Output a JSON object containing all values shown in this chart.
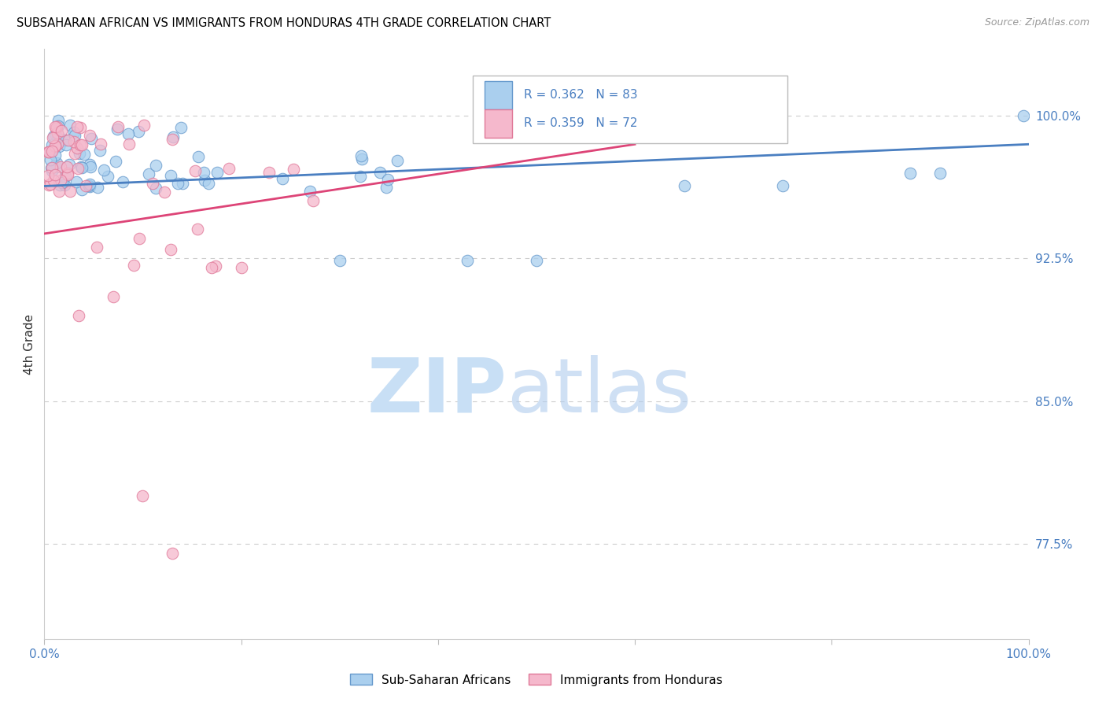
{
  "title": "SUBSAHARAN AFRICAN VS IMMIGRANTS FROM HONDURAS 4TH GRADE CORRELATION CHART",
  "source": "Source: ZipAtlas.com",
  "ylabel": "4th Grade",
  "xlim": [
    0.0,
    1.0
  ],
  "ylim": [
    0.725,
    1.035
  ],
  "yticks": [
    0.775,
    0.85,
    0.925,
    1.0
  ],
  "ytick_labels": [
    "77.5%",
    "85.0%",
    "92.5%",
    "100.0%"
  ],
  "legend1_label": "R = 0.362   N = 83",
  "legend2_label": "R = 0.359   N = 72",
  "blue_face": "#aacfee",
  "blue_edge": "#6699cc",
  "pink_face": "#f5b8cc",
  "pink_edge": "#e07898",
  "trendline_blue": "#4a7fc1",
  "trendline_pink": "#dd4477",
  "watermark_zip_color": "#c8dff5",
  "watermark_atlas_color": "#b0ccee",
  "grid_color": "#cccccc",
  "background_color": "#ffffff",
  "title_fontsize": 10.5,
  "source_fontsize": 9,
  "tick_color_right": "#4a7fc1",
  "bottom_legend_blue_label": "Sub-Saharan Africans",
  "bottom_legend_pink_label": "Immigrants from Honduras"
}
